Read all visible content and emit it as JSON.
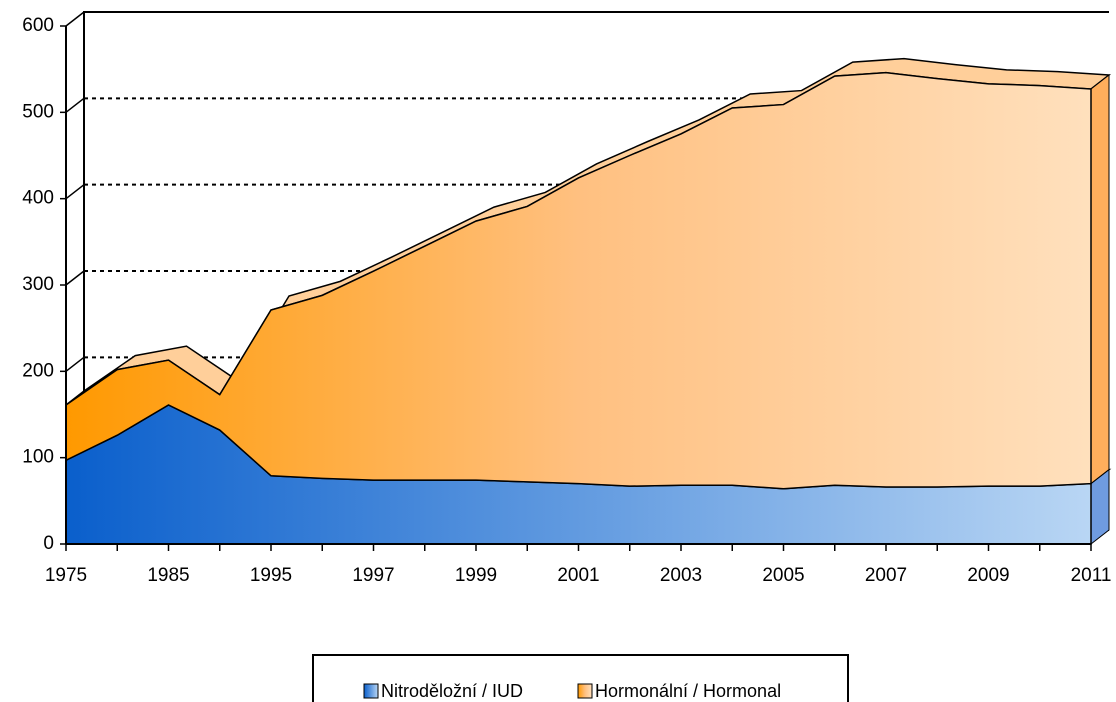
{
  "chart_data": {
    "type": "area",
    "categories": [
      1975,
      null,
      1985,
      null,
      1995,
      null,
      1997,
      null,
      1999,
      null,
      2001,
      null,
      2003,
      null,
      2005,
      null,
      2007,
      null,
      2009,
      null,
      2011
    ],
    "series": [
      {
        "name": "Nitroděložní / IUD",
        "color": "#4a7fd6",
        "values": [
          97,
          126,
          161,
          132,
          79,
          76,
          74,
          74,
          74,
          72,
          70,
          67,
          68,
          68,
          64,
          68,
          66,
          66,
          67,
          67,
          70
        ]
      },
      {
        "name": "Hormonální / Hormonal",
        "color": "#ffb870",
        "values": [
          64,
          76,
          52,
          41,
          192,
          212,
          242,
          271,
          300,
          319,
          354,
          383,
          407,
          437,
          445,
          474,
          480,
          473,
          466,
          464,
          457
        ]
      }
    ],
    "stacked": true,
    "ylim": [
      0,
      600
    ],
    "yticks": [
      0,
      100,
      200,
      300,
      400,
      500,
      600
    ],
    "grid": true,
    "legend": "bottom"
  }
}
